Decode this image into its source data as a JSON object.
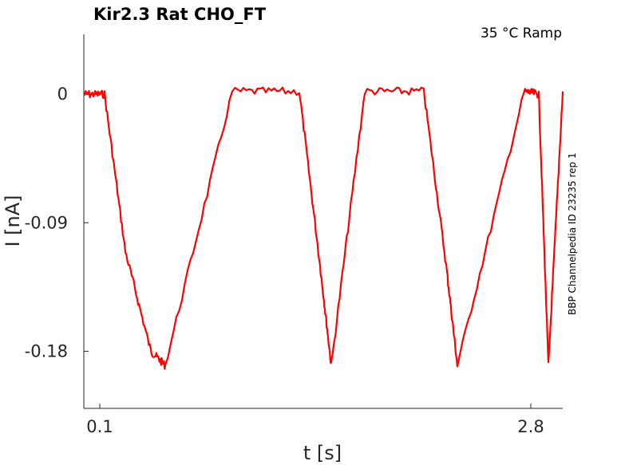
{
  "chart_data": {
    "type": "line",
    "title": "Kir2.3  Rat  CHO_FT",
    "annotation": "35 °C  Ramp",
    "side_label": "BBP Channelpedia ID 23235 rep 1",
    "xlabel": "t [s]",
    "ylabel": "I [nA]",
    "xlim": [
      0,
      3.0
    ],
    "ylim": [
      -0.22,
      0.042
    ],
    "x_ticks": [
      0.1,
      2.8
    ],
    "x_tick_labels": [
      "0.1",
      "2.8"
    ],
    "y_ticks": [
      0,
      -0.09,
      -0.18
    ],
    "y_tick_labels": [
      "0",
      "-0.09",
      "-0.18"
    ],
    "grid": false,
    "series": [
      {
        "color": "#ff0000",
        "x": [
          0.0,
          0.13,
          0.26,
          0.42,
          0.51,
          0.93,
          1.35,
          1.48,
          1.55,
          1.76,
          2.13,
          2.27,
          2.34,
          2.76,
          2.85,
          2.91,
          3.0
        ],
        "values": [
          0.0,
          0.0,
          -0.11,
          -0.18,
          -0.19,
          0.002,
          0.002,
          -0.12,
          -0.19,
          0.002,
          0.002,
          -0.12,
          -0.19,
          0.002,
          0.0,
          -0.19,
          0.002
        ]
      }
    ]
  }
}
